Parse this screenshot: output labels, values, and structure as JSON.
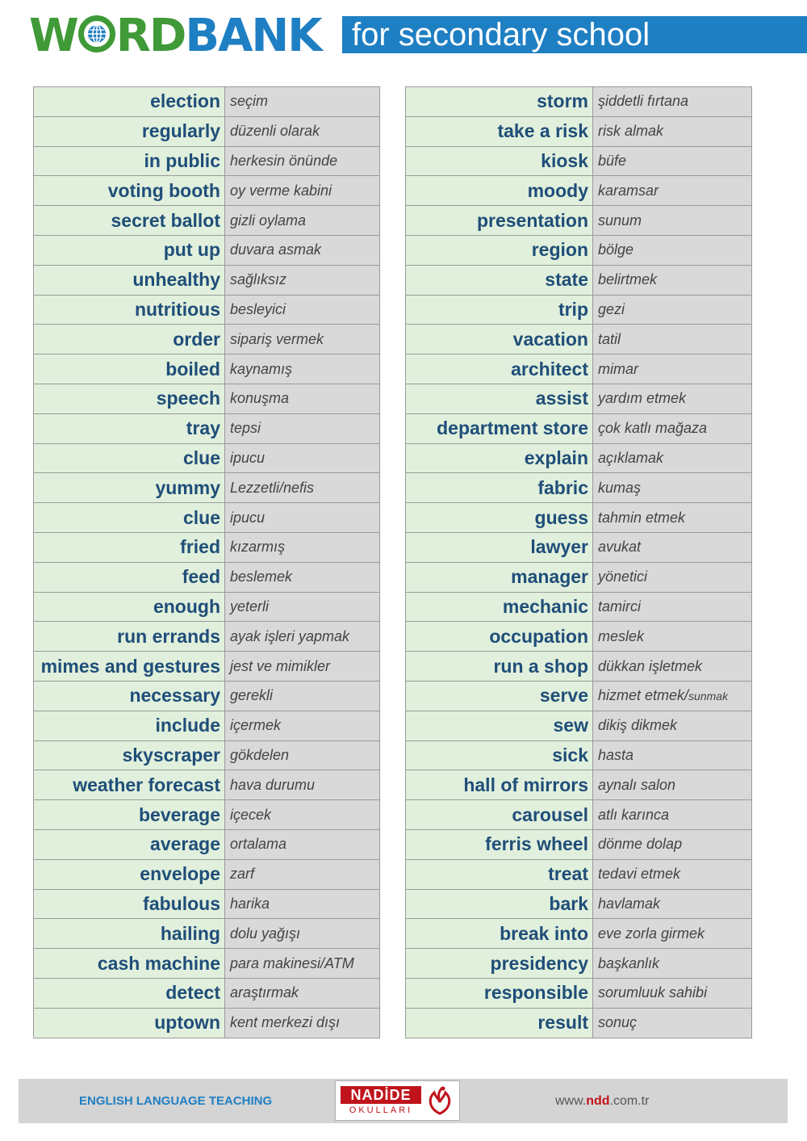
{
  "header": {
    "logo_part1": "W",
    "logo_part2": "RD",
    "logo_part3": "BANK",
    "subtitle": "for secondary school"
  },
  "colors": {
    "green": "#3f9a37",
    "blue": "#1f7fc3",
    "word_text": "#1f4e79",
    "word_bg": "#e1f0dc",
    "translation_bg": "#d9d9d9",
    "brand_red": "#c0141c"
  },
  "left_words": [
    {
      "en": "election",
      "tr": "seçim"
    },
    {
      "en": "regularly",
      "tr": "düzenli olarak"
    },
    {
      "en": "in public",
      "tr": "herkesin önünde"
    },
    {
      "en": "voting booth",
      "tr": "oy verme kabini"
    },
    {
      "en": "secret ballot",
      "tr": "gizli oylama"
    },
    {
      "en": "put up",
      "tr": "duvara asmak"
    },
    {
      "en": "unhealthy",
      "tr": "sağlıksız"
    },
    {
      "en": "nutritious",
      "tr": "besleyici"
    },
    {
      "en": "order",
      "tr": "sipariş vermek"
    },
    {
      "en": "boiled",
      "tr": "kaynamış"
    },
    {
      "en": "speech",
      "tr": "konuşma"
    },
    {
      "en": "tray",
      "tr": "tepsi"
    },
    {
      "en": "clue",
      "tr": "ipucu"
    },
    {
      "en": "yummy",
      "tr": "Lezzetli/nefis"
    },
    {
      "en": "clue",
      "tr": "ipucu"
    },
    {
      "en": "fried",
      "tr": "kızarmış"
    },
    {
      "en": "feed",
      "tr": "beslemek"
    },
    {
      "en": "enough",
      "tr": "yeterli"
    },
    {
      "en": "run errands",
      "tr": "ayak işleri yapmak"
    },
    {
      "en": "mimes and gestures",
      "tr": "jest ve mimikler"
    },
    {
      "en": "necessary",
      "tr": "gerekli"
    },
    {
      "en": "include",
      "tr": "içermek"
    },
    {
      "en": "skyscraper",
      "tr": "gökdelen"
    },
    {
      "en": "weather  forecast",
      "tr": "hava durumu"
    },
    {
      "en": "beverage",
      "tr": "içecek"
    },
    {
      "en": "average",
      "tr": "ortalama"
    },
    {
      "en": "envelope",
      "tr": "zarf"
    },
    {
      "en": "fabulous",
      "tr": "harika"
    },
    {
      "en": "hailing",
      "tr": "dolu yağışı"
    },
    {
      "en": "cash machine",
      "tr": "para makinesi/ATM"
    },
    {
      "en": "detect",
      "tr": "araştırmak"
    },
    {
      "en": "uptown",
      "tr": "kent merkezi dışı"
    }
  ],
  "right_words": [
    {
      "en": "storm",
      "tr": "şiddetli fırtana"
    },
    {
      "en": "take a risk",
      "tr": "risk almak"
    },
    {
      "en": "kiosk",
      "tr": "büfe"
    },
    {
      "en": "moody",
      "tr": "karamsar"
    },
    {
      "en": "presentation",
      "tr": "sunum"
    },
    {
      "en": "region",
      "tr": "bölge"
    },
    {
      "en": "state",
      "tr": "belirtmek"
    },
    {
      "en": "trip",
      "tr": "gezi"
    },
    {
      "en": "vacation",
      "tr": "tatil"
    },
    {
      "en": "architect",
      "tr": "mimar"
    },
    {
      "en": "assist",
      "tr": "yardım etmek"
    },
    {
      "en": "department store",
      "tr": "çok katlı mağaza"
    },
    {
      "en": "explain",
      "tr": "açıklamak"
    },
    {
      "en": "fabric",
      "tr": "kumaş"
    },
    {
      "en": "guess",
      "tr": "tahmin etmek"
    },
    {
      "en": "lawyer",
      "tr": "avukat"
    },
    {
      "en": "manager",
      "tr": "yönetici"
    },
    {
      "en": "mechanic",
      "tr": "tamirci"
    },
    {
      "en": "occupation",
      "tr": "meslek"
    },
    {
      "en": "run a shop",
      "tr": "dükkan işletmek"
    },
    {
      "en": "serve",
      "tr": "hizmet etmek/",
      "tr_small": "sunmak"
    },
    {
      "en": "sew",
      "tr": "dikiş dikmek"
    },
    {
      "en": "sick",
      "tr": "hasta"
    },
    {
      "en": "hall of mirrors",
      "tr": "aynalı salon"
    },
    {
      "en": "carousel",
      "tr": "atlı karınca"
    },
    {
      "en": "ferris wheel",
      "tr": "dönme dolap"
    },
    {
      "en": "treat",
      "tr": "tedavi etmek"
    },
    {
      "en": "bark",
      "tr": "havlamak"
    },
    {
      "en": "break into",
      "tr": "eve zorla girmek"
    },
    {
      "en": "presidency",
      "tr": "başkanlık"
    },
    {
      "en": "responsible",
      "tr": "sorumluuk sahibi"
    },
    {
      "en": "result",
      "tr": "sonuç"
    }
  ],
  "footer": {
    "left_text": "ENGLISH LANGUAGE TEACHING",
    "logo_name": "NADİDE",
    "logo_sub": "OKULLARI",
    "url_prefix": "www.",
    "url_highlight": "ndd",
    "url_suffix": ".com.tr"
  }
}
